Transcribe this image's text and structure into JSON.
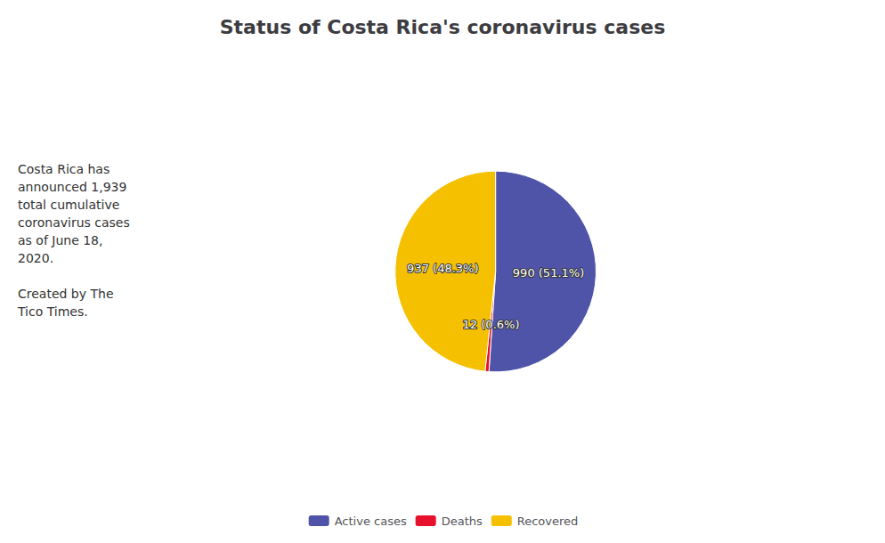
{
  "chart_data": {
    "type": "pie",
    "title": "Status of Costa Rica's coronavirus cases",
    "categories": [
      "Active cases",
      "Deaths",
      "Recovered"
    ],
    "values": [
      990,
      12,
      937
    ],
    "value_labels": [
      "990 (51.1%)",
      "12 (0.6%)",
      "937 (48.3%)"
    ],
    "colors": [
      "#4f54a8",
      "#e8112d",
      "#f5c000"
    ],
    "annotation": "Costa Rica has\nannounced 1,939\ntotal cumulative\ncoronavirus cases\nas of June 18,\n2020.\n\nCreated by The\nTico Times.",
    "data_labels": true,
    "legend": "bottom"
  }
}
